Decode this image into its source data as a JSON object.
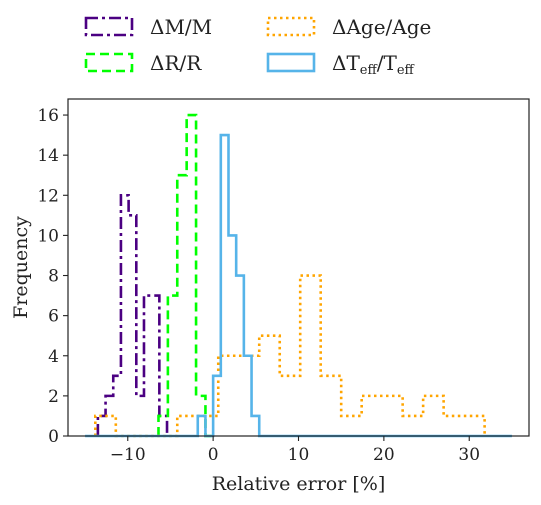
{
  "chart_data": {
    "type": "histogram",
    "xlabel": "Relative error [%]",
    "ylabel": "Frequency",
    "xlim": [
      -17,
      37
    ],
    "ylim": [
      0,
      16.8
    ],
    "xticks": [
      -10,
      0,
      10,
      20,
      30
    ],
    "xtick_labels": [
      "−10",
      "0",
      "10",
      "20",
      "30"
    ],
    "yticks": [
      0,
      2,
      4,
      6,
      8,
      10,
      12,
      14,
      16
    ],
    "ytick_labels": [
      "0",
      "2",
      "4",
      "6",
      "8",
      "10",
      "12",
      "14",
      "16"
    ],
    "legend_position": "top, outside plot, 2 columns",
    "series": [
      {
        "name": "ΔM/M",
        "color": "#4b0082",
        "dash": "dash-dot",
        "edges": [
          -13.5,
          -12.6,
          -11.7,
          -10.8,
          -9.9,
          -9.0,
          -8.1,
          -7.2,
          -6.3,
          -5.4
        ],
        "counts": [
          1,
          2,
          3,
          12,
          11,
          2,
          7,
          7,
          1
        ]
      },
      {
        "name": "ΔR/R",
        "color": "#00ff00",
        "dash": "dashed",
        "edges": [
          -6.4,
          -5.3,
          -4.2,
          -3.1,
          -2.0,
          -0.9,
          0.2
        ],
        "counts": [
          1,
          7,
          13,
          16,
          2,
          0
        ]
      },
      {
        "name": "ΔAge/Age",
        "color": "#ffa500",
        "dash": "dotted",
        "edges": [
          -13.8,
          -11.4,
          -9.0,
          -6.6,
          -4.2,
          -1.8,
          0.6,
          3.0,
          5.4,
          7.8,
          10.2,
          12.6,
          15.0,
          17.4,
          19.8,
          22.2,
          24.6,
          27.0,
          29.4,
          31.8
        ],
        "counts": [
          1,
          0,
          0,
          0,
          1,
          1,
          4,
          4,
          5,
          3,
          8,
          3,
          1,
          2,
          2,
          1,
          2,
          1,
          1
        ]
      },
      {
        "name": "ΔT_eff/T_eff",
        "color": "#56b4e9",
        "dash": "solid",
        "edges": [
          -15,
          -1.8,
          -0.9,
          0.0,
          0.9,
          1.8,
          2.7,
          3.6,
          4.5,
          5.4,
          35
        ],
        "counts": [
          0,
          1,
          0,
          3,
          15,
          10,
          8,
          4,
          1,
          0
        ]
      }
    ]
  }
}
